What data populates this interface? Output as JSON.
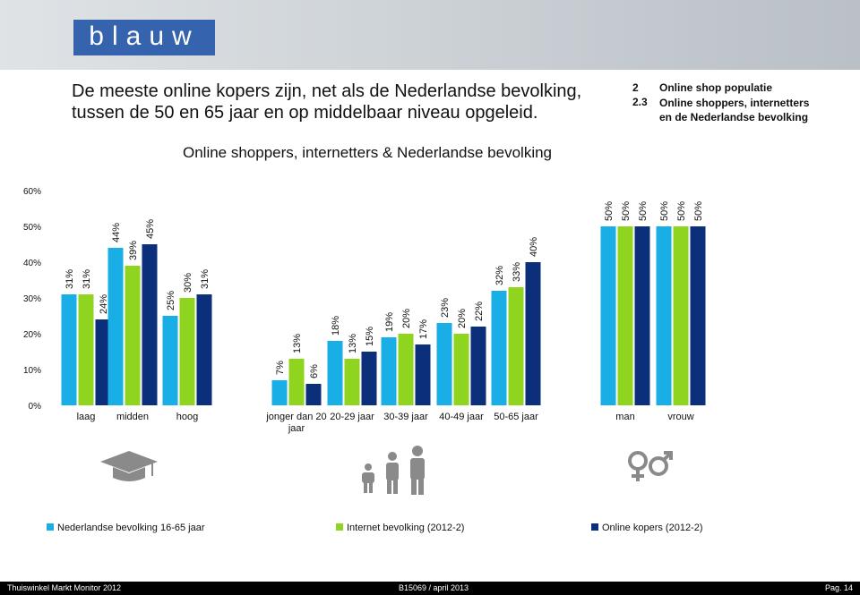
{
  "header": {
    "logo": "blauw",
    "title": "De meeste online kopers zijn, net als de Nederlandse bevolking, tussen de 50 en 65 jaar en op middelbaar niveau opgeleid.",
    "section_number": "2",
    "section_title": "Online shop populatie",
    "subsection_number": "2.3",
    "subsection_title": "Online shoppers, internetters en de Nederlandse bevolking"
  },
  "chart_data": {
    "type": "bar",
    "title": "Online shoppers, internetters & Nederlandse bevolking",
    "categories": [
      "laag",
      "midden",
      "hoog",
      "jonger dan 20 jaar",
      "20-29 jaar",
      "30-39 jaar",
      "40-49 jaar",
      "50-65 jaar",
      "man",
      "vrouw"
    ],
    "series": [
      {
        "name": "Nederlandse bevolking 16-65 jaar",
        "color": "#1aaee6",
        "values": [
          31,
          44,
          25,
          7,
          18,
          19,
          23,
          32,
          50,
          50
        ],
        "value_labels": [
          "31%",
          "44%",
          "25%",
          "7%",
          "18%",
          "19%",
          "23%",
          "32%",
          "50%",
          "50%"
        ]
      },
      {
        "name": "Internet bevolking (2012-2)",
        "color": "#8fd41e",
        "values": [
          31,
          39,
          30,
          13,
          13,
          20,
          20,
          33,
          50,
          50
        ],
        "value_labels": [
          "31%",
          "39%",
          "30%",
          "13%",
          "13%",
          "20%",
          "20%",
          "33%",
          "50%",
          "50%"
        ]
      },
      {
        "name": "Online kopers (2012-2)",
        "color": "#0c2f7c",
        "values": [
          24,
          45,
          31,
          6,
          15,
          17,
          22,
          40,
          50,
          50
        ],
        "value_labels": [
          "24%",
          "45%",
          "31%",
          "6%",
          "15%",
          "17%",
          "22%",
          "40%",
          "50%",
          "50%"
        ]
      }
    ],
    "ylim": [
      0,
      60
    ],
    "yticks": [
      {
        "value": 0,
        "label": "0%"
      },
      {
        "value": 10,
        "label": "10%"
      },
      {
        "value": 20,
        "label": "20%"
      },
      {
        "value": 30,
        "label": "30%"
      },
      {
        "value": 40,
        "label": "40%"
      },
      {
        "value": 50,
        "label": "50%"
      },
      {
        "value": 60,
        "label": "60%"
      }
    ],
    "grid": false,
    "legend": "bottom"
  },
  "footer": {
    "left": "Thuiswinkel Markt Monitor 2012",
    "center": "B15069 / april 2013",
    "right": "Pag. 14"
  }
}
